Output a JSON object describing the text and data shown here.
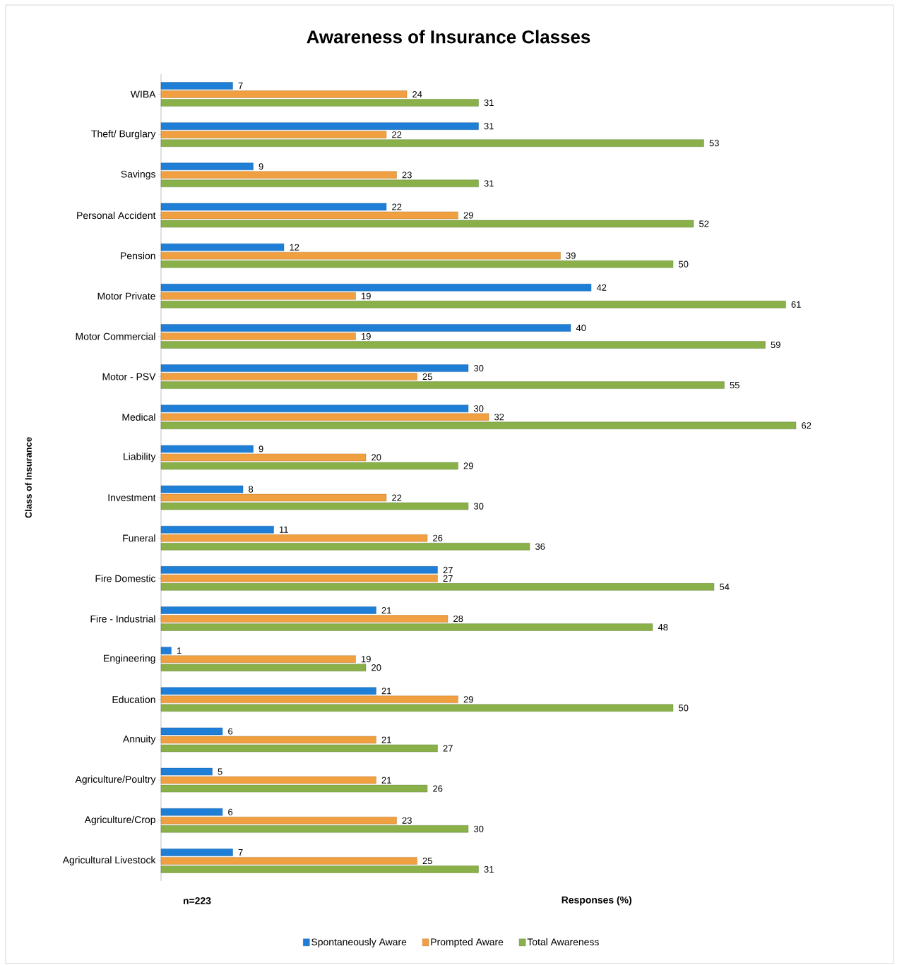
{
  "chart_data": {
    "type": "bar",
    "orientation": "horizontal",
    "title": "Awareness of Insurance Classes",
    "xlabel": "Responses (%)",
    "ylabel": "Class of Insurance",
    "categories": [
      "WIBA",
      "Theft/ Burglary",
      "Savings",
      "Personal Accident",
      "Pension",
      "Motor Private",
      "Motor Commercial",
      "Motor - PSV",
      "Medical",
      "Liability",
      "Investment",
      "Funeral",
      "Fire Domestic",
      "Fire - Industrial",
      "Engineering",
      "Education",
      "Annuity",
      "Agriculture/Poultry",
      "Agriculture/Crop",
      "Agricultural Livestock"
    ],
    "series": [
      {
        "name": "Spontaneously Aware",
        "color": "#1f7fd6",
        "values": [
          7,
          31,
          9,
          22,
          12,
          42,
          40,
          30,
          30,
          9,
          8,
          11,
          27,
          21,
          1,
          21,
          6,
          5,
          6,
          7
        ]
      },
      {
        "name": "Prompted Aware",
        "color": "#f0a040",
        "values": [
          24,
          22,
          23,
          29,
          39,
          19,
          19,
          25,
          32,
          20,
          22,
          26,
          27,
          28,
          19,
          29,
          21,
          21,
          23,
          25
        ]
      },
      {
        "name": "Total Awareness",
        "color": "#8ab04a",
        "values": [
          31,
          53,
          31,
          52,
          50,
          61,
          59,
          55,
          62,
          29,
          30,
          36,
          54,
          48,
          20,
          50,
          27,
          26,
          30,
          31
        ]
      }
    ],
    "tick_labels": "y",
    "data_labels": true,
    "legend": "bottom",
    "annotations": [
      "n=223"
    ]
  }
}
